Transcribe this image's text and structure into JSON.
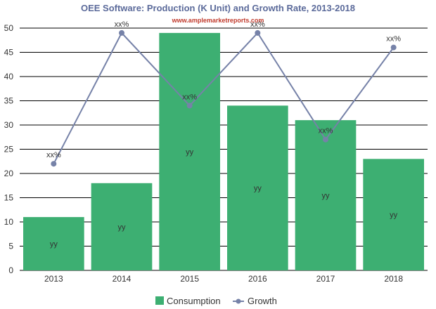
{
  "chart_data": {
    "type": "bar",
    "title": "OEE Software: Production (K Unit) and Growth Rate, 2013-2018",
    "subtitle": "www.amplemarketreports.com",
    "categories": [
      "2013",
      "2014",
      "2015",
      "2016",
      "2017",
      "2018"
    ],
    "ylim": [
      0,
      50
    ],
    "yticks": [
      0,
      5,
      10,
      15,
      20,
      25,
      30,
      35,
      40,
      45,
      50
    ],
    "grid": true,
    "legend_position": "bottom",
    "series": [
      {
        "name": "Consumption",
        "type": "bar",
        "values": [
          11,
          18,
          49,
          34,
          31,
          23
        ],
        "label": "yy",
        "color": "#3daf72"
      },
      {
        "name": "Growth",
        "type": "line",
        "values": [
          22,
          49,
          34,
          49,
          27,
          46
        ],
        "label": "xx%",
        "color": "#7682a8"
      }
    ],
    "colors": {
      "title": "#5b6a9a",
      "subtitle": "#c0392b"
    }
  }
}
